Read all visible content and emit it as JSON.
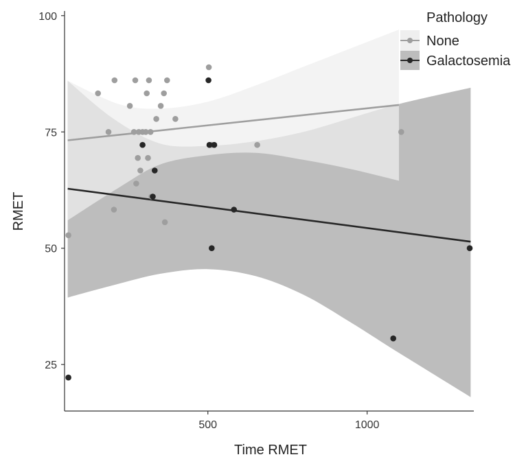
{
  "chart_data": {
    "type": "scatter",
    "xlabel": "Time RMET",
    "ylabel": "RMET",
    "xlim": [
      50,
      1335
    ],
    "ylim": [
      15,
      101
    ],
    "xticks": [
      500,
      1000
    ],
    "yticks": [
      25,
      50,
      75,
      100
    ],
    "xtick_labels": [
      "500",
      "1000"
    ],
    "ytick_labels": [
      "25",
      "50",
      "75",
      "100"
    ],
    "grid": false,
    "legend": {
      "title": "Pathology",
      "position": "top-right"
    },
    "series": [
      {
        "name": "None",
        "color": "#9e9e9e",
        "ribbon_color": "#efefef",
        "fit": {
          "x": [
            60,
            1100
          ],
          "y": [
            73.2,
            80.8
          ]
        },
        "ribbon": {
          "x": [
            60,
            220,
            350,
            500,
            650,
            800,
            950,
            1100
          ],
          "lower": [
            56,
            63,
            68,
            70,
            70.5,
            69,
            67,
            64.5
          ],
          "upper": [
            86,
            81,
            80,
            81.5,
            85,
            89,
            93,
            97
          ]
        },
        "points": [
          {
            "x": 62,
            "y": 52.8
          },
          {
            "x": 155,
            "y": 83.3
          },
          {
            "x": 188,
            "y": 75
          },
          {
            "x": 205,
            "y": 58.3
          },
          {
            "x": 207,
            "y": 86.1
          },
          {
            "x": 255,
            "y": 80.6
          },
          {
            "x": 268,
            "y": 75
          },
          {
            "x": 272,
            "y": 86.1
          },
          {
            "x": 275,
            "y": 63.9
          },
          {
            "x": 280,
            "y": 69.4
          },
          {
            "x": 283,
            "y": 75
          },
          {
            "x": 288,
            "y": 66.7
          },
          {
            "x": 295,
            "y": 75
          },
          {
            "x": 305,
            "y": 75
          },
          {
            "x": 308,
            "y": 83.3
          },
          {
            "x": 312,
            "y": 69.4
          },
          {
            "x": 315,
            "y": 86.1
          },
          {
            "x": 320,
            "y": 75
          },
          {
            "x": 323,
            "y": 61.1
          },
          {
            "x": 338,
            "y": 77.8
          },
          {
            "x": 352,
            "y": 80.6
          },
          {
            "x": 362,
            "y": 83.3
          },
          {
            "x": 365,
            "y": 55.6
          },
          {
            "x": 372,
            "y": 86.1
          },
          {
            "x": 398,
            "y": 77.8
          },
          {
            "x": 503,
            "y": 88.9
          },
          {
            "x": 512,
            "y": 72.2
          },
          {
            "x": 655,
            "y": 72.2
          },
          {
            "x": 1107,
            "y": 75
          }
        ]
      },
      {
        "name": "Galactosemia",
        "color": "#262626",
        "ribbon_color": "#bdbdbd",
        "fit": {
          "x": [
            60,
            1325
          ],
          "y": [
            62.8,
            51.4
          ]
        },
        "ribbon": {
          "x": [
            60,
            200,
            350,
            500,
            650,
            800,
            950,
            1100,
            1325
          ],
          "lower": [
            39.4,
            42,
            44.5,
            45.5,
            44,
            40,
            34,
            27.5,
            18
          ],
          "upper": [
            86,
            78,
            72.5,
            72,
            73,
            75,
            78,
            81,
            84.5
          ]
        },
        "points": [
          {
            "x": 62,
            "y": 22.2
          },
          {
            "x": 295,
            "y": 72.2
          },
          {
            "x": 327,
            "y": 61.1
          },
          {
            "x": 333,
            "y": 66.7
          },
          {
            "x": 502,
            "y": 86.1
          },
          {
            "x": 505,
            "y": 72.2
          },
          {
            "x": 512,
            "y": 50
          },
          {
            "x": 520,
            "y": 72.2
          },
          {
            "x": 582,
            "y": 58.3
          },
          {
            "x": 1082,
            "y": 30.6
          },
          {
            "x": 1322,
            "y": 50
          }
        ]
      }
    ]
  }
}
